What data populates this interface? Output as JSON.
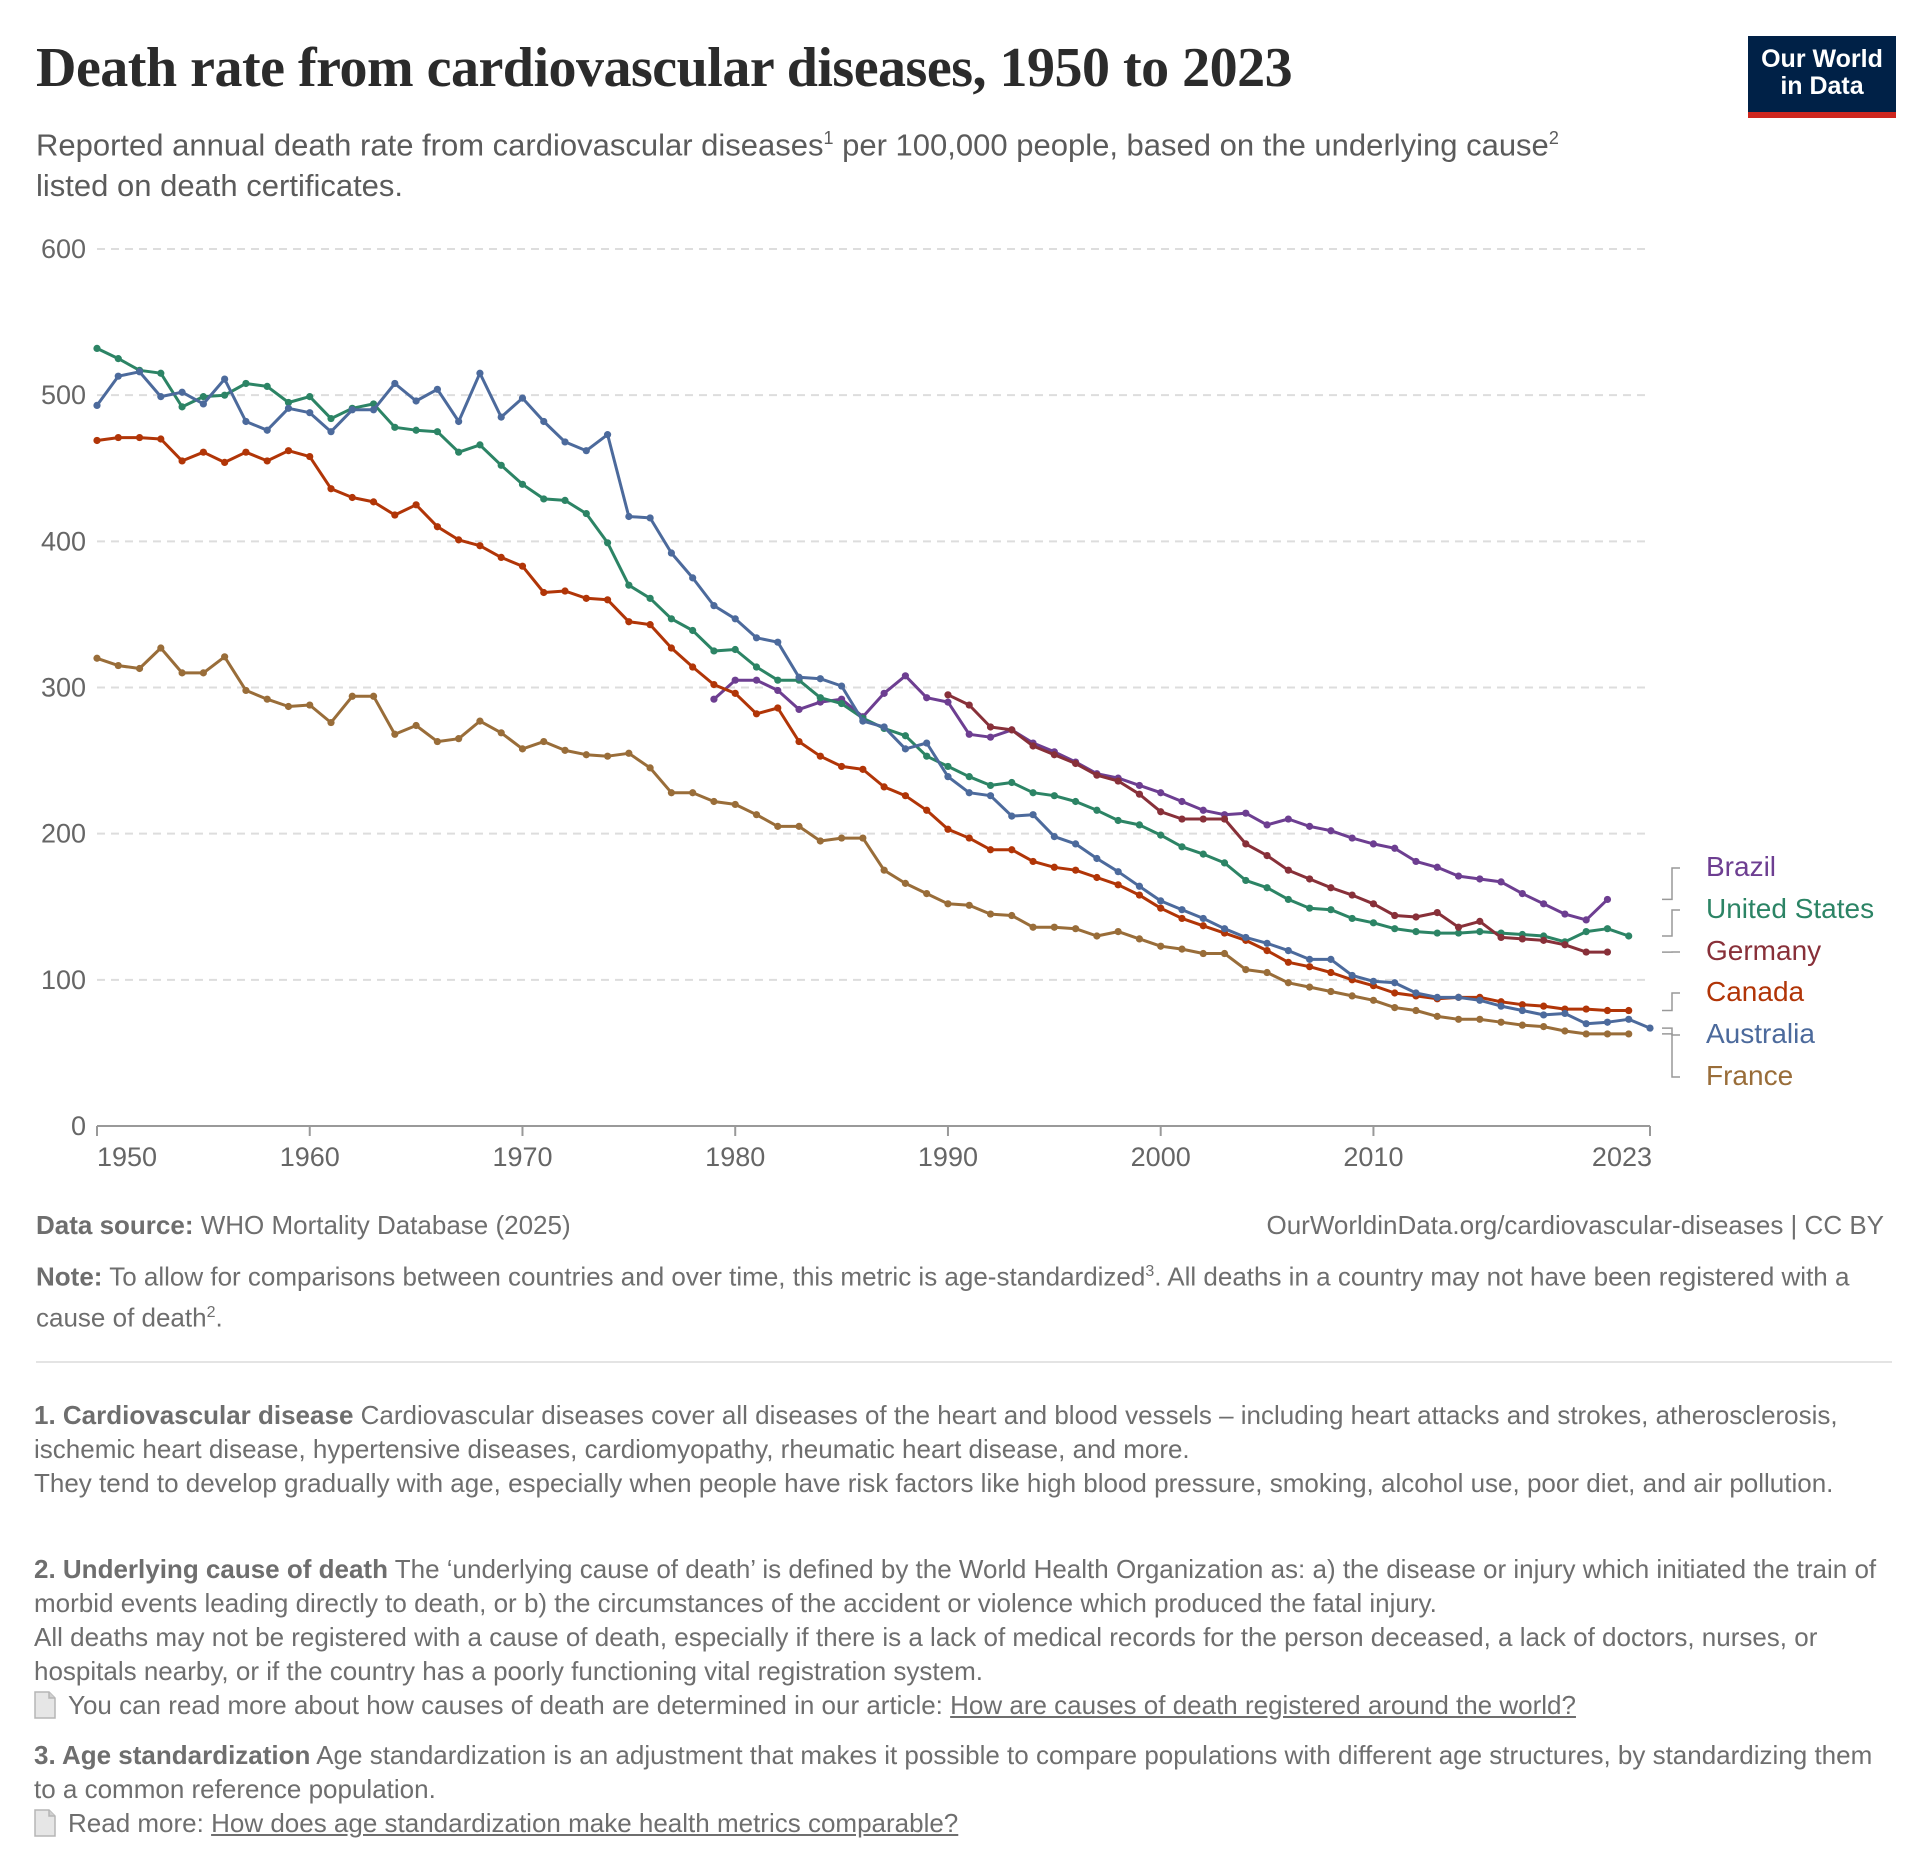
{
  "header": {
    "title": "Death rate from cardiovascular diseases, 1950 to 2023",
    "subtitle_part1": "Reported annual death rate from cardiovascular diseases",
    "subtitle_sup1": "1",
    "subtitle_part2": " per 100,000 people, based on the underlying cause",
    "subtitle_sup2": "2",
    "subtitle_part3": "listed on death certificates.",
    "logo_line1": "Our World",
    "logo_line2": "in Data"
  },
  "footer": {
    "source_label": "Data source:",
    "source_text": " WHO Mortality Database (2025)",
    "url_text": "OurWorldinData.org/cardiovascular-diseases  | CC BY",
    "note_label": "Note:",
    "note_text_1": " To allow for comparisons between countries and over time, this metric is  age-standardized",
    "note_sup_1": "3",
    "note_text_2": ". All deaths in a country may not have been registered with a cause of death",
    "note_sup_2": "2",
    "note_text_3": "."
  },
  "footnotes": {
    "fn1_title": "1. Cardiovascular disease",
    "fn1_text": " Cardiovascular diseases cover all diseases of the heart and blood vessels – including heart attacks and  strokes, atherosclerosis, ischemic heart disease, hypertensive diseases, cardiomyopathy, rheumatic heart disease, and more.",
    "fn1_text2": "They tend to develop gradually with age, especially when people have risk factors like high blood pressure, smoking, alcohol use, poor diet, and air pollution.",
    "fn2_title": "2. Underlying cause of death",
    "fn2_text": " The ‘underlying cause of death’ is defined by the World Health Organization as: a) the disease or injury which initiated the train of morbid events leading directly to death, or b) the circumstances of the accident or violence which produced the fatal injury.",
    "fn2_text2": "All deaths may not be registered with a cause of death, especially if there is a lack of medical records for the person deceased, a lack of doctors, nurses, or hospitals nearby, or if the country has a poorly functioning vital registration system.",
    "fn2_read": "You can read more about how causes of death are determined in our article:  ",
    "fn2_link": "How are causes of death registered around the world?",
    "fn3_title": "3. Age standardization",
    "fn3_text": " Age standardization is an adjustment that makes it possible to compare populations with different age structures, by standardizing them to a common reference population.",
    "fn3_read": "Read more: ",
    "fn3_link": "How does age standardization make health metrics comparable?"
  },
  "chart_data": {
    "type": "line",
    "xlim": [
      1950,
      2023
    ],
    "ylim": [
      0,
      600
    ],
    "x_ticks": [
      1950,
      1960,
      1970,
      1980,
      1990,
      2000,
      2010,
      2023
    ],
    "y_ticks": [
      0,
      100,
      200,
      300,
      400,
      500,
      600
    ],
    "grid": true,
    "legend_placement": "right",
    "series": [
      {
        "name": "Brazil",
        "color": "#6d3e91",
        "x": [
          1979,
          1980,
          1981,
          1982,
          1983,
          1984,
          1985,
          1986,
          1987,
          1988,
          1989,
          1990,
          1991,
          1992,
          1993,
          1994,
          1995,
          1996,
          1997,
          1998,
          1999,
          2000,
          2001,
          2002,
          2003,
          2004,
          2005,
          2006,
          2007,
          2008,
          2009,
          2010,
          2011,
          2012,
          2013,
          2014,
          2015,
          2016,
          2017,
          2018,
          2019,
          2020,
          2021
        ],
        "y": [
          292,
          305,
          305,
          298,
          285,
          290,
          292,
          280,
          296,
          308,
          293,
          290,
          268,
          266,
          271,
          262,
          256,
          249,
          241,
          238,
          233,
          228,
          222,
          216,
          213,
          214,
          206,
          210,
          205,
          202,
          197,
          193,
          190,
          181,
          177,
          171,
          169,
          167,
          159,
          152,
          145,
          141,
          155
        ]
      },
      {
        "name": "United States",
        "color": "#2c8465",
        "x": [
          1950,
          1951,
          1952,
          1953,
          1954,
          1955,
          1956,
          1957,
          1958,
          1959,
          1960,
          1961,
          1962,
          1963,
          1964,
          1965,
          1966,
          1967,
          1968,
          1969,
          1970,
          1971,
          1972,
          1973,
          1974,
          1975,
          1976,
          1977,
          1978,
          1979,
          1980,
          1981,
          1982,
          1983,
          1984,
          1985,
          1986,
          1987,
          1988,
          1989,
          1990,
          1991,
          1992,
          1993,
          1994,
          1995,
          1996,
          1997,
          1998,
          1999,
          2000,
          2001,
          2002,
          2003,
          2004,
          2005,
          2006,
          2007,
          2008,
          2009,
          2010,
          2011,
          2012,
          2013,
          2014,
          2015,
          2016,
          2017,
          2018,
          2019,
          2020,
          2021,
          2022
        ],
        "y": [
          532,
          525,
          517,
          515,
          492,
          499,
          500,
          508,
          506,
          495,
          499,
          484,
          491,
          494,
          478,
          476,
          475,
          461,
          466,
          452,
          439,
          429,
          428,
          419,
          399,
          370,
          361,
          347,
          339,
          325,
          326,
          314,
          305,
          305,
          293,
          289,
          279,
          272,
          267,
          253,
          246,
          239,
          233,
          235,
          228,
          226,
          222,
          216,
          209,
          206,
          199,
          191,
          186,
          180,
          168,
          163,
          155,
          149,
          148,
          142,
          139,
          135,
          133,
          132,
          132,
          133,
          132,
          131,
          130,
          126,
          133,
          135,
          130
        ]
      },
      {
        "name": "Germany",
        "color": "#883039",
        "x": [
          1990,
          1991,
          1992,
          1993,
          1994,
          1995,
          1996,
          1997,
          1998,
          1999,
          2000,
          2001,
          2002,
          2003,
          2004,
          2005,
          2006,
          2007,
          2008,
          2009,
          2010,
          2011,
          2012,
          2013,
          2014,
          2015,
          2016,
          2017,
          2018,
          2019,
          2020,
          2021
        ],
        "y": [
          295,
          288,
          273,
          271,
          260,
          254,
          248,
          240,
          236,
          227,
          215,
          210,
          210,
          210,
          193,
          185,
          175,
          169,
          163,
          158,
          152,
          144,
          143,
          146,
          136,
          140,
          129,
          128,
          127,
          124,
          119,
          119
        ]
      },
      {
        "name": "Canada",
        "color": "#b13507",
        "x": [
          1950,
          1951,
          1952,
          1953,
          1954,
          1955,
          1956,
          1957,
          1958,
          1959,
          1960,
          1961,
          1962,
          1963,
          1964,
          1965,
          1966,
          1967,
          1968,
          1969,
          1970,
          1971,
          1972,
          1973,
          1974,
          1975,
          1976,
          1977,
          1978,
          1979,
          1980,
          1981,
          1982,
          1983,
          1984,
          1985,
          1986,
          1987,
          1988,
          1989,
          1990,
          1991,
          1992,
          1993,
          1994,
          1995,
          1996,
          1997,
          1998,
          1999,
          2000,
          2001,
          2002,
          2003,
          2004,
          2005,
          2006,
          2007,
          2008,
          2009,
          2010,
          2011,
          2012,
          2013,
          2014,
          2015,
          2016,
          2017,
          2018,
          2019,
          2020,
          2021,
          2022
        ],
        "y": [
          469,
          471,
          471,
          470,
          455,
          461,
          454,
          461,
          455,
          462,
          458,
          436,
          430,
          427,
          418,
          425,
          410,
          401,
          397,
          389,
          383,
          365,
          366,
          361,
          360,
          345,
          343,
          327,
          314,
          302,
          296,
          282,
          286,
          263,
          253,
          246,
          244,
          232,
          226,
          216,
          203,
          197,
          189,
          189,
          181,
          177,
          175,
          170,
          165,
          158,
          149,
          142,
          137,
          132,
          127,
          120,
          112,
          109,
          105,
          100,
          96,
          91,
          89,
          87,
          88,
          88,
          85,
          83,
          82,
          80,
          80,
          79,
          79
        ]
      },
      {
        "name": "Australia",
        "color": "#4c6a9c",
        "x": [
          1950,
          1951,
          1952,
          1953,
          1954,
          1955,
          1956,
          1957,
          1958,
          1959,
          1960,
          1961,
          1962,
          1963,
          1964,
          1965,
          1966,
          1967,
          1968,
          1969,
          1970,
          1971,
          1972,
          1973,
          1974,
          1975,
          1976,
          1977,
          1978,
          1979,
          1980,
          1981,
          1982,
          1983,
          1984,
          1985,
          1986,
          1987,
          1988,
          1989,
          1990,
          1991,
          1992,
          1993,
          1994,
          1995,
          1996,
          1997,
          1998,
          1999,
          2000,
          2001,
          2002,
          2003,
          2004,
          2005,
          2006,
          2007,
          2008,
          2009,
          2010,
          2011,
          2012,
          2013,
          2014,
          2015,
          2016,
          2017,
          2018,
          2019,
          2020,
          2021,
          2022,
          2023
        ],
        "y": [
          493,
          513,
          516,
          499,
          502,
          494,
          511,
          482,
          476,
          491,
          488,
          475,
          490,
          490,
          508,
          496,
          504,
          482,
          515,
          485,
          498,
          482,
          468,
          462,
          473,
          417,
          416,
          392,
          375,
          356,
          347,
          334,
          331,
          307,
          306,
          301,
          277,
          273,
          258,
          262,
          239,
          228,
          226,
          212,
          213,
          198,
          193,
          183,
          174,
          164,
          154,
          148,
          142,
          135,
          129,
          125,
          120,
          114,
          114,
          103,
          99,
          98,
          91,
          88,
          88,
          86,
          82,
          79,
          76,
          77,
          70,
          71,
          73,
          67
        ]
      },
      {
        "name": "France",
        "color": "#996d39",
        "x": [
          1950,
          1951,
          1952,
          1953,
          1954,
          1955,
          1956,
          1957,
          1958,
          1959,
          1960,
          1961,
          1962,
          1963,
          1964,
          1965,
          1966,
          1967,
          1968,
          1969,
          1970,
          1971,
          1972,
          1973,
          1974,
          1975,
          1976,
          1977,
          1978,
          1979,
          1980,
          1981,
          1982,
          1983,
          1984,
          1985,
          1986,
          1987,
          1988,
          1989,
          1990,
          1991,
          1992,
          1993,
          1994,
          1995,
          1996,
          1997,
          1998,
          1999,
          2000,
          2001,
          2002,
          2003,
          2004,
          2005,
          2006,
          2007,
          2008,
          2009,
          2010,
          2011,
          2012,
          2013,
          2014,
          2015,
          2016,
          2017,
          2018,
          2019,
          2020,
          2021,
          2022
        ],
        "y": [
          320,
          315,
          313,
          327,
          310,
          310,
          321,
          298,
          292,
          287,
          288,
          276,
          294,
          294,
          268,
          274,
          263,
          265,
          277,
          269,
          258,
          263,
          257,
          254,
          253,
          255,
          245,
          228,
          228,
          222,
          220,
          213,
          205,
          205,
          195,
          197,
          197,
          175,
          166,
          159,
          152,
          151,
          145,
          144,
          136,
          136,
          135,
          130,
          133,
          128,
          123,
          121,
          118,
          118,
          107,
          105,
          98,
          95,
          92,
          89,
          86,
          81,
          79,
          75,
          73,
          73,
          71,
          69,
          68,
          65,
          63,
          63,
          63
        ]
      }
    ]
  }
}
